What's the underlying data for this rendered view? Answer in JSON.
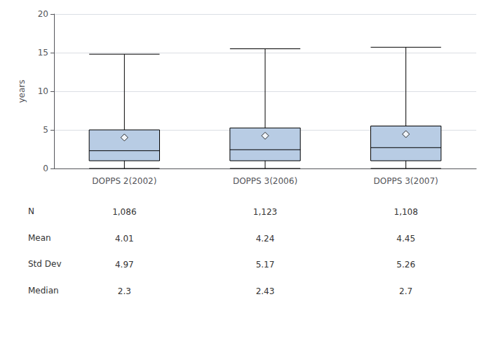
{
  "chart_data": {
    "type": "boxplot",
    "ylabel": "years",
    "categories": [
      "DOPPS 2(2002)",
      "DOPPS 3(2006)",
      "DOPPS 3(2007)"
    ],
    "boxes": [
      {
        "q1": 1.0,
        "median": 2.3,
        "q3": 5.0,
        "whislo": 0.0,
        "whishi": 14.8,
        "mean": 4.01
      },
      {
        "q1": 1.0,
        "median": 2.43,
        "q3": 5.25,
        "whislo": 0.0,
        "whishi": 15.5,
        "mean": 4.24
      },
      {
        "q1": 1.0,
        "median": 2.7,
        "q3": 5.5,
        "whislo": 0.0,
        "whishi": 15.7,
        "mean": 4.45
      }
    ],
    "color": "#b8cce4",
    "marker": "diamond",
    "ylim": [
      0,
      20
    ],
    "yticks": [
      0,
      5,
      10,
      15,
      20
    ],
    "grid": true,
    "table": {
      "rows": [
        "N",
        "Mean",
        "Std Dev",
        "Median"
      ],
      "cells": [
        [
          "1,086",
          "1,123",
          "1,108"
        ],
        [
          "4.01",
          "4.24",
          "4.45"
        ],
        [
          "4.97",
          "5.17",
          "5.26"
        ],
        [
          "2.3",
          "2.43",
          "2.7"
        ]
      ]
    }
  }
}
